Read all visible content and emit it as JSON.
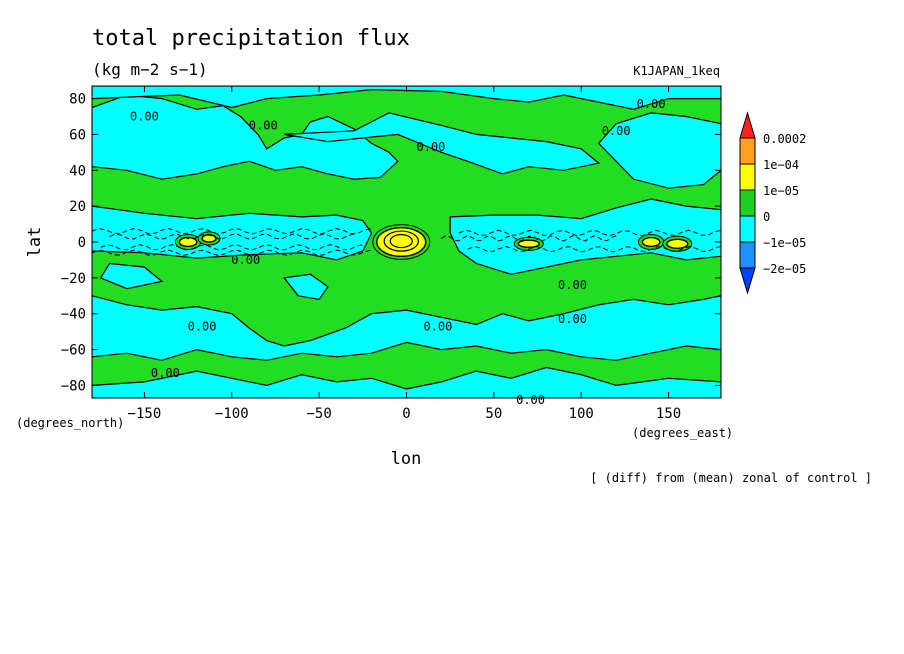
{
  "chart_data": {
    "type": "contour",
    "title": "total precipitation flux",
    "units": "(kg m−2 s−1)",
    "experiment": "K1JAPAN_1keq",
    "xlabel": "lon",
    "ylabel": "lat",
    "x_units": "(degrees_east)",
    "y_units": "(degrees_north)",
    "xlim": [
      -180,
      180
    ],
    "ylim": [
      -87,
      87
    ],
    "x_ticks": [
      -150,
      -100,
      -50,
      0,
      50,
      100,
      150
    ],
    "y_ticks": [
      -80,
      -60,
      -40,
      -20,
      0,
      20,
      40,
      60,
      80
    ],
    "x_tick_labels": [
      "−150",
      "−100",
      "−50",
      "0",
      "50",
      "100",
      "150"
    ],
    "y_tick_labels": [
      "−80",
      "−60",
      "−40",
      "−20",
      "0",
      "20",
      "40",
      "60",
      "80"
    ],
    "contour_label": "0.00",
    "contour_label_positions": [
      {
        "lon": -150,
        "lat": 70
      },
      {
        "lon": -82,
        "lat": 65
      },
      {
        "lon": 14,
        "lat": 53
      },
      {
        "lon": 120,
        "lat": 62
      },
      {
        "lon": 140,
        "lat": 77
      },
      {
        "lon": -92,
        "lat": -10
      },
      {
        "lon": 95,
        "lat": -24
      },
      {
        "lon": -117,
        "lat": -47
      },
      {
        "lon": 18,
        "lat": -47
      },
      {
        "lon": 95,
        "lat": -43
      },
      {
        "lon": -138,
        "lat": -73
      },
      {
        "lon": 71,
        "lat": -88
      }
    ],
    "colorbar": {
      "levels": [
        "0.0002",
        "1e−04",
        "1e−05",
        "0",
        "−1e−05",
        "−2e−05"
      ],
      "colors": [
        "#ff2020",
        "#ffa020",
        "#ffff00",
        "#20d020",
        "#00ffff",
        "#2090ff",
        "#0040ff"
      ]
    },
    "fill_colors": {
      "positive": "#22dd22",
      "negative": "#00ffff",
      "strong_positive": "#ffff00"
    },
    "footnote": "[ (diff) from (mean) zonal of control ]"
  }
}
